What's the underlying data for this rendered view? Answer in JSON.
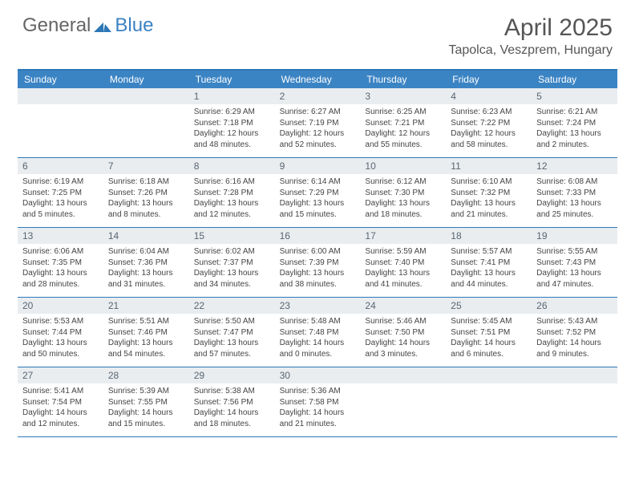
{
  "brand": {
    "part1": "General",
    "part2": "Blue"
  },
  "title": "April 2025",
  "location": "Tapolca, Veszprem, Hungary",
  "colors": {
    "header_bar": "#3b84c4",
    "border": "#2e78b7",
    "daynum_bg": "#e9edf0",
    "text": "#444444"
  },
  "dow": [
    "Sunday",
    "Monday",
    "Tuesday",
    "Wednesday",
    "Thursday",
    "Friday",
    "Saturday"
  ],
  "weeks": [
    [
      {
        "n": "",
        "sr": "",
        "ss": "",
        "dl": ""
      },
      {
        "n": "",
        "sr": "",
        "ss": "",
        "dl": ""
      },
      {
        "n": "1",
        "sr": "Sunrise: 6:29 AM",
        "ss": "Sunset: 7:18 PM",
        "dl": "Daylight: 12 hours and 48 minutes."
      },
      {
        "n": "2",
        "sr": "Sunrise: 6:27 AM",
        "ss": "Sunset: 7:19 PM",
        "dl": "Daylight: 12 hours and 52 minutes."
      },
      {
        "n": "3",
        "sr": "Sunrise: 6:25 AM",
        "ss": "Sunset: 7:21 PM",
        "dl": "Daylight: 12 hours and 55 minutes."
      },
      {
        "n": "4",
        "sr": "Sunrise: 6:23 AM",
        "ss": "Sunset: 7:22 PM",
        "dl": "Daylight: 12 hours and 58 minutes."
      },
      {
        "n": "5",
        "sr": "Sunrise: 6:21 AM",
        "ss": "Sunset: 7:24 PM",
        "dl": "Daylight: 13 hours and 2 minutes."
      }
    ],
    [
      {
        "n": "6",
        "sr": "Sunrise: 6:19 AM",
        "ss": "Sunset: 7:25 PM",
        "dl": "Daylight: 13 hours and 5 minutes."
      },
      {
        "n": "7",
        "sr": "Sunrise: 6:18 AM",
        "ss": "Sunset: 7:26 PM",
        "dl": "Daylight: 13 hours and 8 minutes."
      },
      {
        "n": "8",
        "sr": "Sunrise: 6:16 AM",
        "ss": "Sunset: 7:28 PM",
        "dl": "Daylight: 13 hours and 12 minutes."
      },
      {
        "n": "9",
        "sr": "Sunrise: 6:14 AM",
        "ss": "Sunset: 7:29 PM",
        "dl": "Daylight: 13 hours and 15 minutes."
      },
      {
        "n": "10",
        "sr": "Sunrise: 6:12 AM",
        "ss": "Sunset: 7:30 PM",
        "dl": "Daylight: 13 hours and 18 minutes."
      },
      {
        "n": "11",
        "sr": "Sunrise: 6:10 AM",
        "ss": "Sunset: 7:32 PM",
        "dl": "Daylight: 13 hours and 21 minutes."
      },
      {
        "n": "12",
        "sr": "Sunrise: 6:08 AM",
        "ss": "Sunset: 7:33 PM",
        "dl": "Daylight: 13 hours and 25 minutes."
      }
    ],
    [
      {
        "n": "13",
        "sr": "Sunrise: 6:06 AM",
        "ss": "Sunset: 7:35 PM",
        "dl": "Daylight: 13 hours and 28 minutes."
      },
      {
        "n": "14",
        "sr": "Sunrise: 6:04 AM",
        "ss": "Sunset: 7:36 PM",
        "dl": "Daylight: 13 hours and 31 minutes."
      },
      {
        "n": "15",
        "sr": "Sunrise: 6:02 AM",
        "ss": "Sunset: 7:37 PM",
        "dl": "Daylight: 13 hours and 34 minutes."
      },
      {
        "n": "16",
        "sr": "Sunrise: 6:00 AM",
        "ss": "Sunset: 7:39 PM",
        "dl": "Daylight: 13 hours and 38 minutes."
      },
      {
        "n": "17",
        "sr": "Sunrise: 5:59 AM",
        "ss": "Sunset: 7:40 PM",
        "dl": "Daylight: 13 hours and 41 minutes."
      },
      {
        "n": "18",
        "sr": "Sunrise: 5:57 AM",
        "ss": "Sunset: 7:41 PM",
        "dl": "Daylight: 13 hours and 44 minutes."
      },
      {
        "n": "19",
        "sr": "Sunrise: 5:55 AM",
        "ss": "Sunset: 7:43 PM",
        "dl": "Daylight: 13 hours and 47 minutes."
      }
    ],
    [
      {
        "n": "20",
        "sr": "Sunrise: 5:53 AM",
        "ss": "Sunset: 7:44 PM",
        "dl": "Daylight: 13 hours and 50 minutes."
      },
      {
        "n": "21",
        "sr": "Sunrise: 5:51 AM",
        "ss": "Sunset: 7:46 PM",
        "dl": "Daylight: 13 hours and 54 minutes."
      },
      {
        "n": "22",
        "sr": "Sunrise: 5:50 AM",
        "ss": "Sunset: 7:47 PM",
        "dl": "Daylight: 13 hours and 57 minutes."
      },
      {
        "n": "23",
        "sr": "Sunrise: 5:48 AM",
        "ss": "Sunset: 7:48 PM",
        "dl": "Daylight: 14 hours and 0 minutes."
      },
      {
        "n": "24",
        "sr": "Sunrise: 5:46 AM",
        "ss": "Sunset: 7:50 PM",
        "dl": "Daylight: 14 hours and 3 minutes."
      },
      {
        "n": "25",
        "sr": "Sunrise: 5:45 AM",
        "ss": "Sunset: 7:51 PM",
        "dl": "Daylight: 14 hours and 6 minutes."
      },
      {
        "n": "26",
        "sr": "Sunrise: 5:43 AM",
        "ss": "Sunset: 7:52 PM",
        "dl": "Daylight: 14 hours and 9 minutes."
      }
    ],
    [
      {
        "n": "27",
        "sr": "Sunrise: 5:41 AM",
        "ss": "Sunset: 7:54 PM",
        "dl": "Daylight: 14 hours and 12 minutes."
      },
      {
        "n": "28",
        "sr": "Sunrise: 5:39 AM",
        "ss": "Sunset: 7:55 PM",
        "dl": "Daylight: 14 hours and 15 minutes."
      },
      {
        "n": "29",
        "sr": "Sunrise: 5:38 AM",
        "ss": "Sunset: 7:56 PM",
        "dl": "Daylight: 14 hours and 18 minutes."
      },
      {
        "n": "30",
        "sr": "Sunrise: 5:36 AM",
        "ss": "Sunset: 7:58 PM",
        "dl": "Daylight: 14 hours and 21 minutes."
      },
      {
        "n": "",
        "sr": "",
        "ss": "",
        "dl": ""
      },
      {
        "n": "",
        "sr": "",
        "ss": "",
        "dl": ""
      },
      {
        "n": "",
        "sr": "",
        "ss": "",
        "dl": ""
      }
    ]
  ]
}
